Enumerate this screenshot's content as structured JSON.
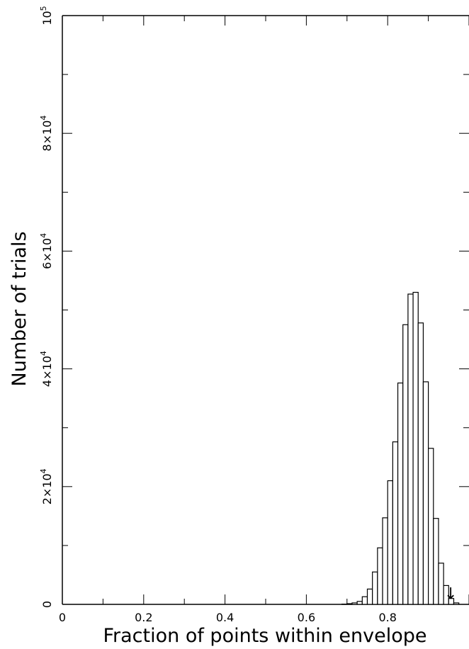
{
  "chart_data": {
    "type": "bar",
    "xlabel": "Fraction of points within envelope",
    "ylabel": "Number of trials",
    "xlim": [
      0,
      1
    ],
    "ylim": [
      0,
      100000
    ],
    "bin_width": 0.0125,
    "x_ticks": [
      {
        "value": 0,
        "label": "0"
      },
      {
        "value": 0.2,
        "label": "0.2"
      },
      {
        "value": 0.4,
        "label": "0.4"
      },
      {
        "value": 0.6,
        "label": "0.6"
      },
      {
        "value": 0.8,
        "label": "0.8"
      }
    ],
    "y_ticks": [
      {
        "value": 0,
        "base": "0",
        "exp": ""
      },
      {
        "value": 20000,
        "base": "2×10",
        "exp": "4"
      },
      {
        "value": 40000,
        "base": "4×10",
        "exp": "4"
      },
      {
        "value": 60000,
        "base": "6×10",
        "exp": "4"
      },
      {
        "value": 80000,
        "base": "8×10",
        "exp": "4"
      },
      {
        "value": 100000,
        "base": "10",
        "exp": "5"
      }
    ],
    "bins": [
      {
        "x": 0.6875,
        "value": 50
      },
      {
        "x": 0.7,
        "value": 120
      },
      {
        "x": 0.7125,
        "value": 250
      },
      {
        "x": 0.725,
        "value": 500
      },
      {
        "x": 0.7375,
        "value": 1300
      },
      {
        "x": 0.75,
        "value": 2600
      },
      {
        "x": 0.7625,
        "value": 5500
      },
      {
        "x": 0.775,
        "value": 9600
      },
      {
        "x": 0.7875,
        "value": 14700
      },
      {
        "x": 0.8,
        "value": 21000
      },
      {
        "x": 0.8125,
        "value": 27600
      },
      {
        "x": 0.825,
        "value": 37600
      },
      {
        "x": 0.8375,
        "value": 47500
      },
      {
        "x": 0.85,
        "value": 52700
      },
      {
        "x": 0.8625,
        "value": 53000
      },
      {
        "x": 0.875,
        "value": 47800
      },
      {
        "x": 0.8875,
        "value": 37800
      },
      {
        "x": 0.9,
        "value": 26500
      },
      {
        "x": 0.9125,
        "value": 14600
      },
      {
        "x": 0.925,
        "value": 7000
      },
      {
        "x": 0.9375,
        "value": 3200
      },
      {
        "x": 0.95,
        "value": 1000
      },
      {
        "x": 0.9625,
        "value": 250
      }
    ],
    "arrow": {
      "x": 0.955,
      "glyph": "↓"
    }
  }
}
